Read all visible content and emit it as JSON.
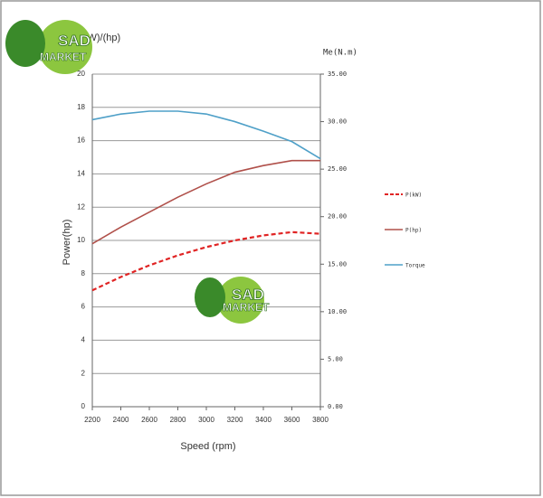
{
  "chart_data": {
    "type": "line",
    "y_label_top": "P(kW)/(hp)",
    "y2_label_top": "Me(N.m)",
    "ylabel": "Power(hp)",
    "xlabel": "Speed (rpm)",
    "x": [
      2200,
      2400,
      2600,
      2800,
      3000,
      3200,
      3400,
      3600,
      3800
    ],
    "xlim": [
      2200,
      3800
    ],
    "xticks": [
      2200,
      2400,
      2600,
      2800,
      3000,
      3200,
      3400,
      3600,
      3800
    ],
    "ylim": [
      0,
      20
    ],
    "yticks": [
      0,
      2,
      4,
      6,
      8,
      10,
      12,
      14,
      16,
      18,
      20
    ],
    "y2lim": [
      0,
      35
    ],
    "y2ticks": [
      {
        "value": 0,
        "label": "0.00"
      },
      {
        "value": 5,
        "label": "5.00"
      },
      {
        "value": 10,
        "label": "10.00"
      },
      {
        "value": 15,
        "label": "15.00"
      },
      {
        "value": 20,
        "label": "20.00"
      },
      {
        "value": 25,
        "label": "25.00"
      },
      {
        "value": 30,
        "label": "30.00"
      },
      {
        "value": 35,
        "label": "35.00"
      }
    ],
    "grid": true,
    "series": [
      {
        "name": "P(kW)",
        "color": "#e02424",
        "dashed": true,
        "values": [
          7.0,
          7.8,
          8.5,
          9.1,
          9.6,
          10.0,
          10.3,
          10.5,
          10.4
        ]
      },
      {
        "name": "P(hp)",
        "color": "#b0504a",
        "dashed": false,
        "values": [
          9.8,
          10.8,
          11.7,
          12.6,
          13.4,
          14.1,
          14.5,
          14.8,
          14.8
        ]
      },
      {
        "name": "Torque",
        "color": "#4fa0c8",
        "dashed": false,
        "axis": "y2",
        "values": [
          30.2,
          30.8,
          31.1,
          31.1,
          30.8,
          30.0,
          29.0,
          27.9,
          26.1
        ]
      }
    ],
    "watermark": {
      "line1": "SAD",
      "line2": "MARKET"
    }
  }
}
